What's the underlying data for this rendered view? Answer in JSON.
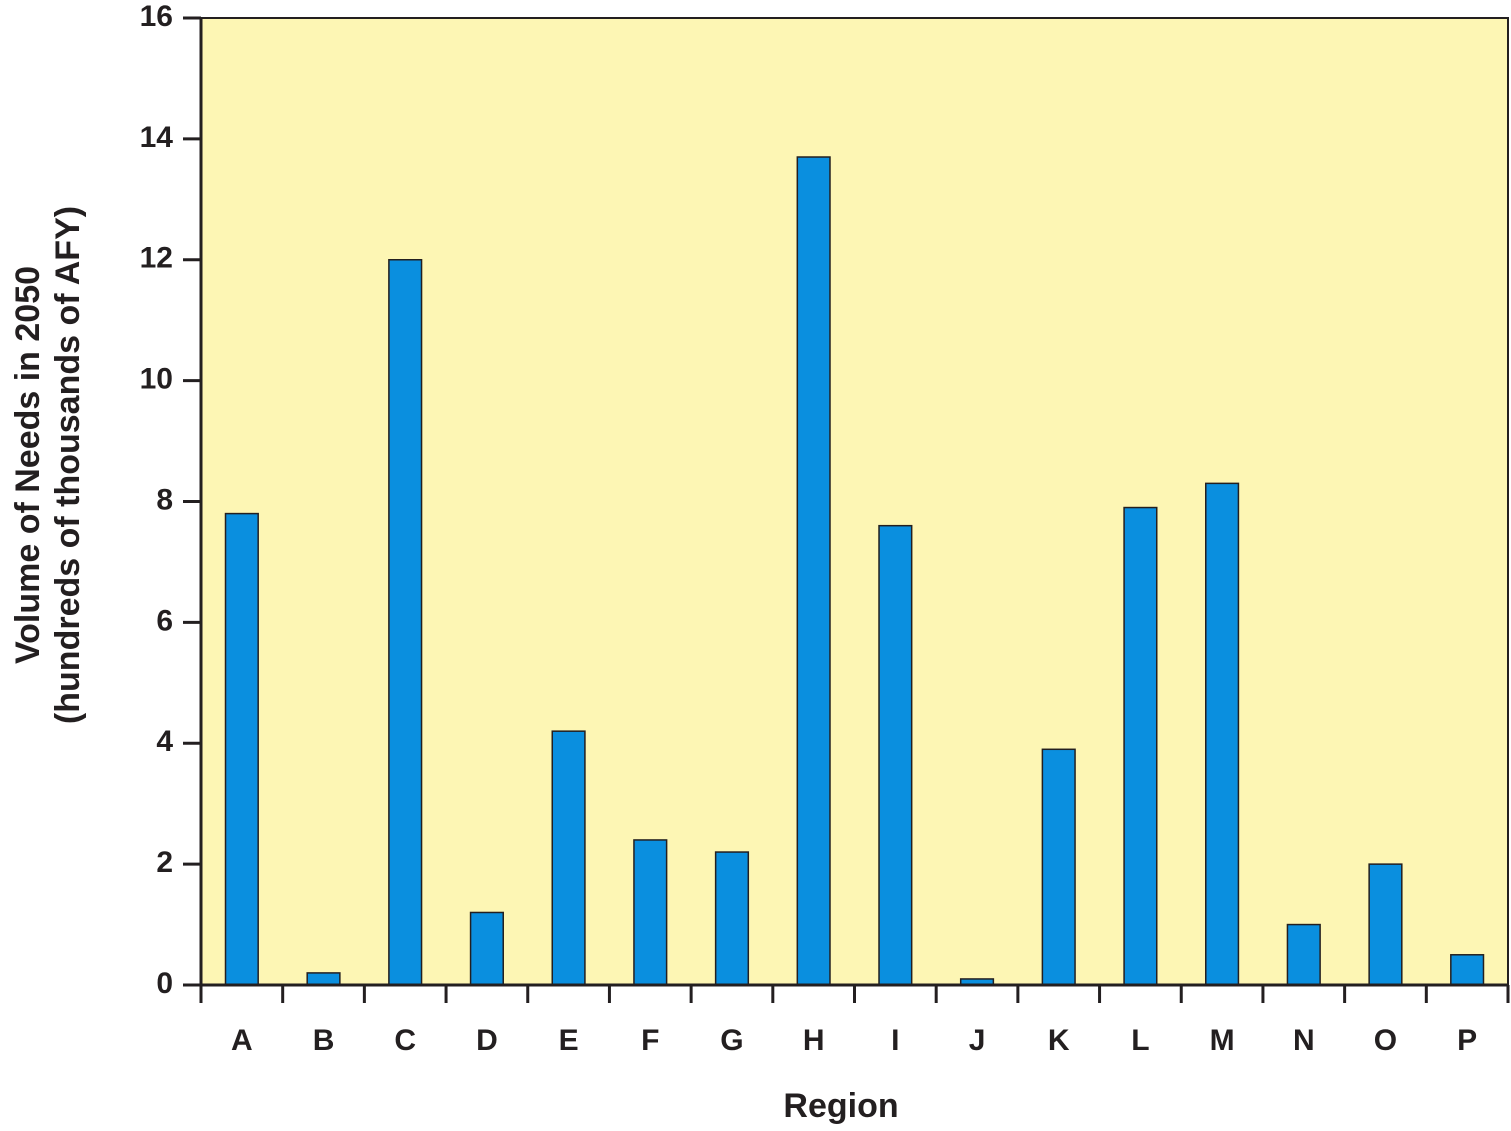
{
  "chart_data": {
    "type": "bar",
    "xlabel": "Region",
    "ylabel": [
      "Volume of Needs in 2050",
      "(hundreds of thousands of AFY)"
    ],
    "categories": [
      "A",
      "B",
      "C",
      "D",
      "E",
      "F",
      "G",
      "H",
      "I",
      "J",
      "K",
      "L",
      "M",
      "N",
      "O",
      "P"
    ],
    "values": [
      7.8,
      0.2,
      12.0,
      1.2,
      4.2,
      2.4,
      2.2,
      13.7,
      7.6,
      0.1,
      3.9,
      7.9,
      8.3,
      1.0,
      2.0,
      0.5
    ],
    "color": "#0a8fdf",
    "background": "#fdf6b4",
    "ylim": [
      0,
      16
    ],
    "yticks": [
      0,
      2,
      4,
      6,
      8,
      10,
      12,
      14,
      16
    ]
  }
}
